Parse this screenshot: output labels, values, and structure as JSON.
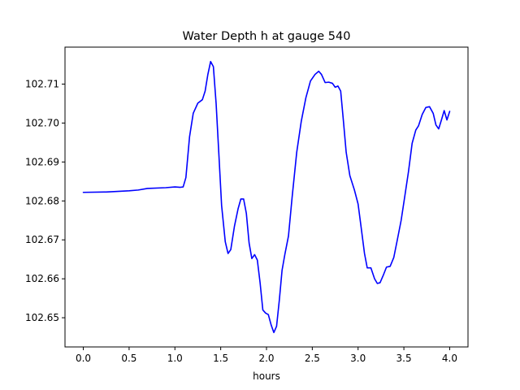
{
  "chart_data": {
    "type": "line",
    "title": "Water Depth h at gauge 540",
    "xlabel": "hours",
    "ylabel": "",
    "xlim": [
      -0.2,
      4.2
    ],
    "ylim": [
      102.6425,
      102.7195
    ],
    "xticks": [
      0.0,
      0.5,
      1.0,
      1.5,
      2.0,
      2.5,
      3.0,
      3.5,
      4.0
    ],
    "xtick_labels": [
      "0.0",
      "0.5",
      "1.0",
      "1.5",
      "2.0",
      "2.5",
      "3.0",
      "3.5",
      "4.0"
    ],
    "yticks": [
      102.65,
      102.66,
      102.67,
      102.68,
      102.69,
      102.7,
      102.71
    ],
    "ytick_labels": [
      "102.65",
      "102.66",
      "102.67",
      "102.68",
      "102.69",
      "102.70",
      "102.71"
    ],
    "grid": false,
    "series": [
      {
        "color": "#0000ff",
        "x": [
          0.0,
          0.25,
          0.5,
          0.6,
          0.7,
          0.9,
          1.0,
          1.06,
          1.09,
          1.12,
          1.16,
          1.2,
          1.25,
          1.3,
          1.33,
          1.36,
          1.39,
          1.42,
          1.45,
          1.48,
          1.51,
          1.55,
          1.58,
          1.61,
          1.65,
          1.69,
          1.72,
          1.75,
          1.78,
          1.81,
          1.84,
          1.87,
          1.9,
          1.93,
          1.96,
          1.99,
          2.02,
          2.05,
          2.08,
          2.11,
          2.14,
          2.17,
          2.2,
          2.24,
          2.28,
          2.33,
          2.38,
          2.43,
          2.48,
          2.53,
          2.57,
          2.6,
          2.64,
          2.68,
          2.72,
          2.75,
          2.78,
          2.81,
          2.84,
          2.87,
          2.91,
          2.96,
          3.0,
          3.03,
          3.07,
          3.1,
          3.14,
          3.18,
          3.21,
          3.24,
          3.28,
          3.31,
          3.35,
          3.39,
          3.43,
          3.47,
          3.51,
          3.55,
          3.59,
          3.63,
          3.66,
          3.7,
          3.74,
          3.78,
          3.82,
          3.85,
          3.88,
          3.91,
          3.94,
          3.97,
          4.0
        ],
        "y": [
          102.6822,
          102.6823,
          102.6826,
          102.6828,
          102.6832,
          102.6834,
          102.6836,
          102.6835,
          102.6836,
          102.686,
          102.6965,
          102.7025,
          102.7051,
          102.706,
          102.7082,
          102.7125,
          102.7158,
          102.7145,
          102.705,
          102.692,
          102.6788,
          102.6695,
          102.6665,
          102.6675,
          102.6735,
          102.678,
          102.6805,
          102.6805,
          102.6768,
          102.6692,
          102.6652,
          102.6662,
          102.6648,
          102.659,
          102.652,
          102.6512,
          102.6508,
          102.6482,
          102.6462,
          102.6478,
          102.6545,
          102.6622,
          102.6662,
          102.671,
          102.681,
          102.6925,
          102.7005,
          102.7065,
          102.7108,
          102.7125,
          102.7133,
          102.7125,
          102.7104,
          102.7105,
          102.7102,
          102.7092,
          102.7095,
          102.7082,
          102.7005,
          102.6925,
          102.6865,
          102.6828,
          102.6792,
          102.6738,
          102.6665,
          102.6628,
          102.6628,
          102.66,
          102.6588,
          102.659,
          102.6612,
          102.663,
          102.6632,
          102.6655,
          102.6702,
          102.675,
          102.6812,
          102.6875,
          102.6948,
          102.6982,
          102.6993,
          102.7022,
          102.704,
          102.7042,
          102.7025,
          102.6995,
          102.6985,
          102.7008,
          102.7032,
          102.7008,
          102.703
        ]
      }
    ]
  }
}
